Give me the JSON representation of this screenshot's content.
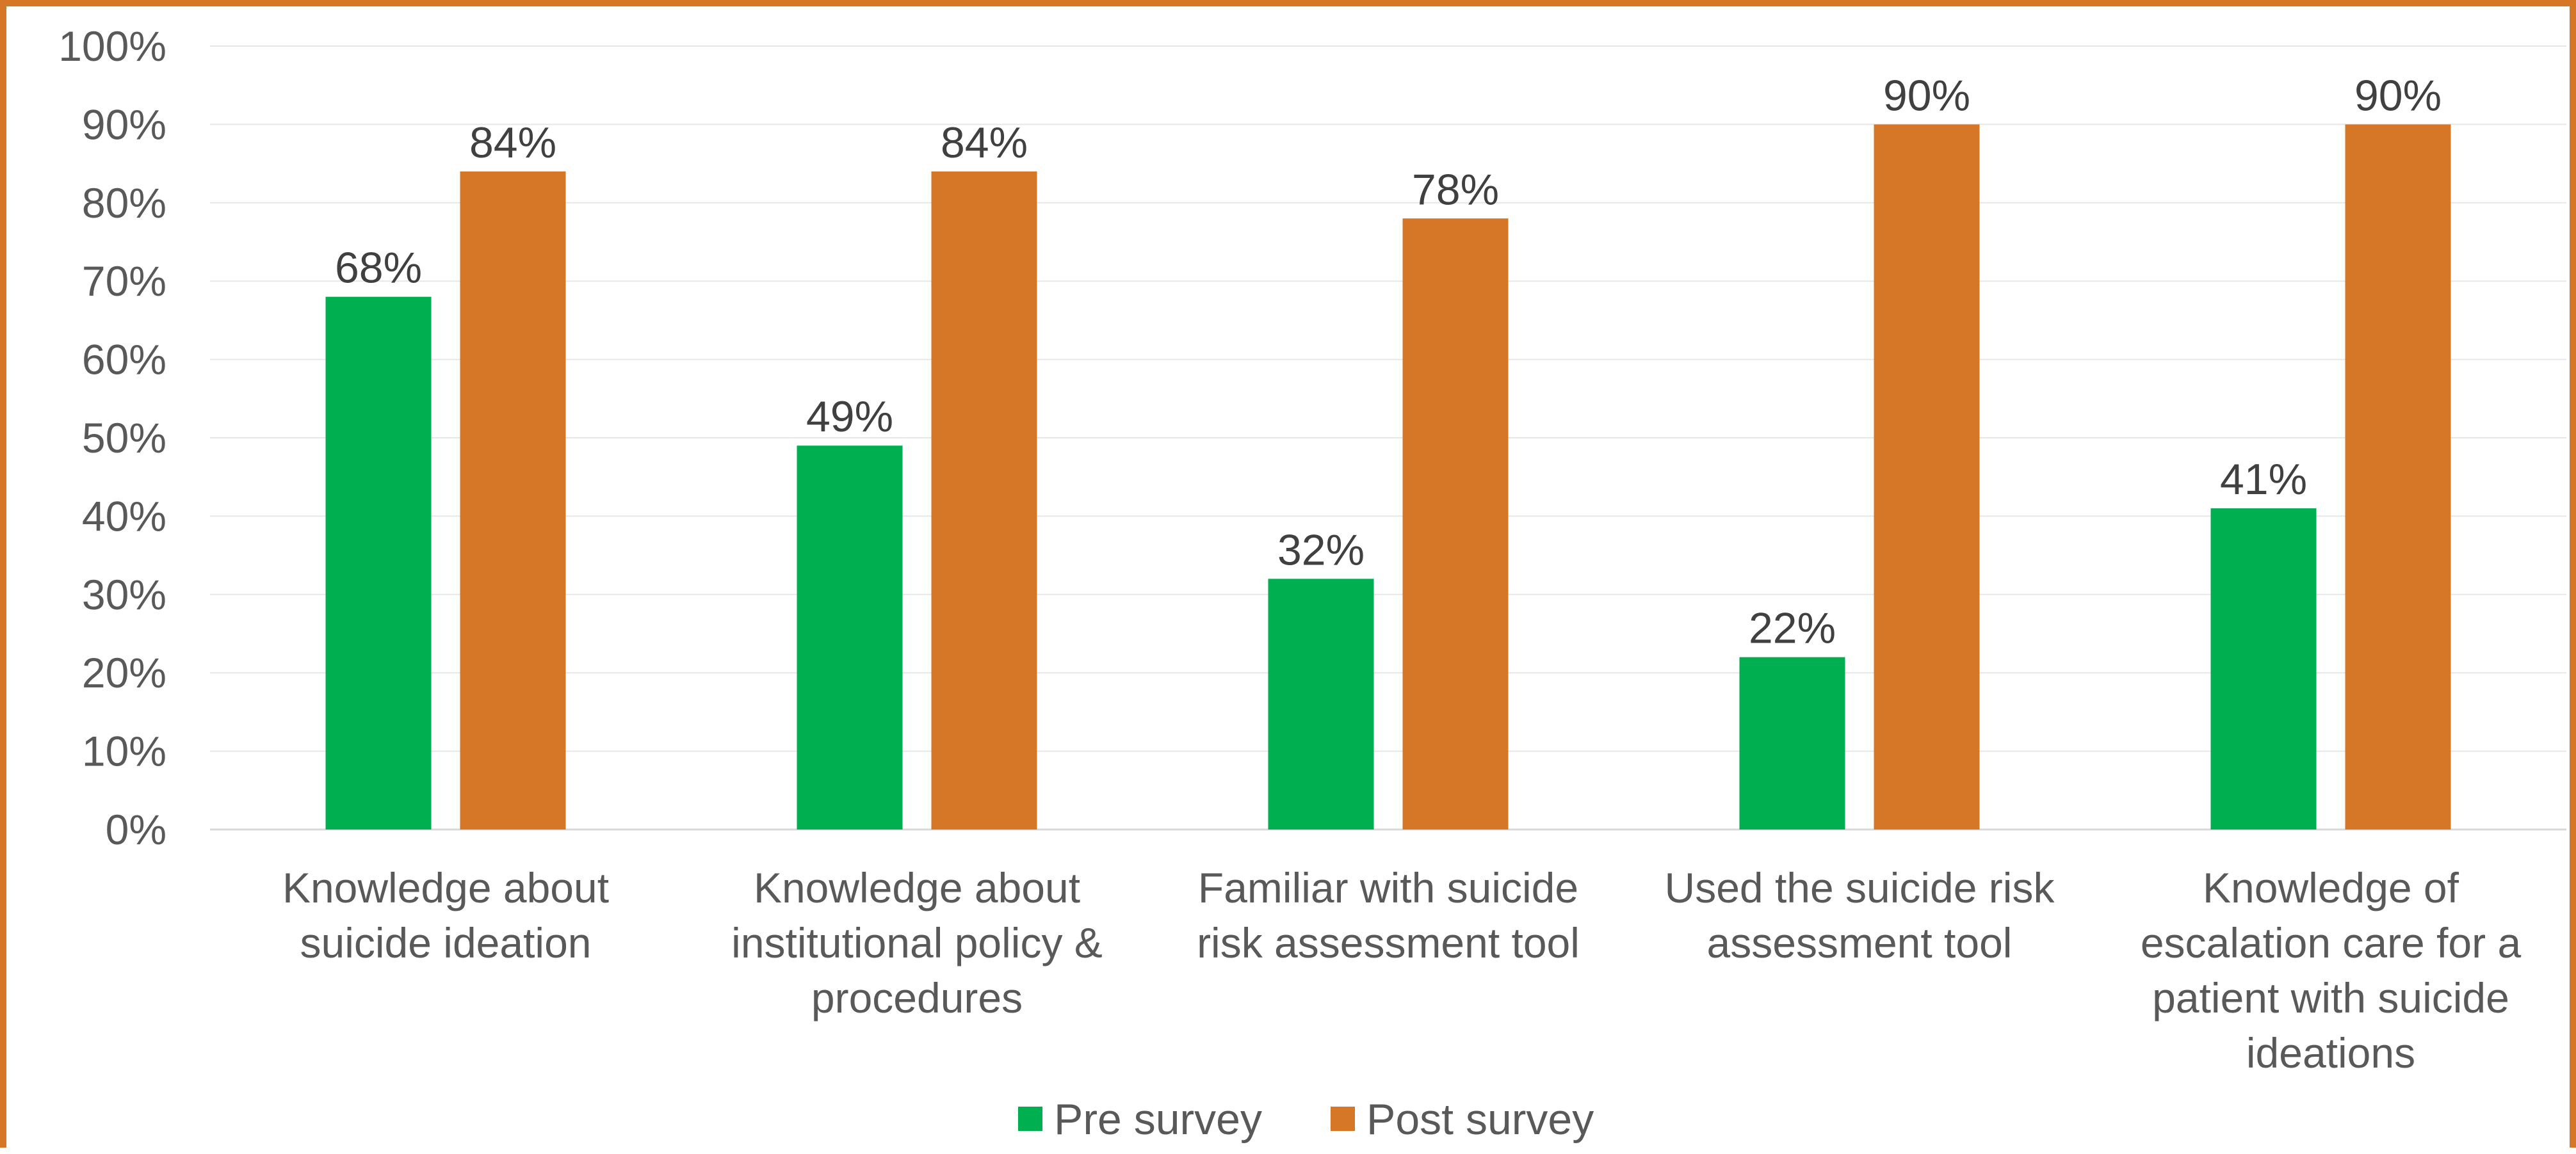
{
  "chart_data": {
    "type": "bar",
    "categories": [
      [
        "Knowledge about",
        "suicide ideation"
      ],
      [
        "Knowledge about",
        "institutional policy &",
        "procedures"
      ],
      [
        "Familiar with suicide",
        "risk assessment tool"
      ],
      [
        "Used the suicide risk",
        "assessment tool"
      ],
      [
        "Knowledge of",
        "escalation care for a",
        "patient with suicide",
        "ideations"
      ]
    ],
    "series": [
      {
        "name": "Pre survey",
        "color": "#00B050",
        "values": [
          68,
          49,
          32,
          22,
          41
        ]
      },
      {
        "name": "Post survey",
        "color": "#D67627",
        "values": [
          84,
          84,
          78,
          90,
          90
        ]
      }
    ],
    "y_ticks": [
      "0%",
      "10%",
      "20%",
      "30%",
      "40%",
      "50%",
      "60%",
      "70%",
      "80%",
      "90%",
      "100%"
    ],
    "ylim": [
      0,
      100
    ],
    "value_suffix": "%",
    "grid": true,
    "legend_position": "bottom",
    "frame_color": "#D67627",
    "title": "",
    "xlabel": "",
    "ylabel": ""
  }
}
